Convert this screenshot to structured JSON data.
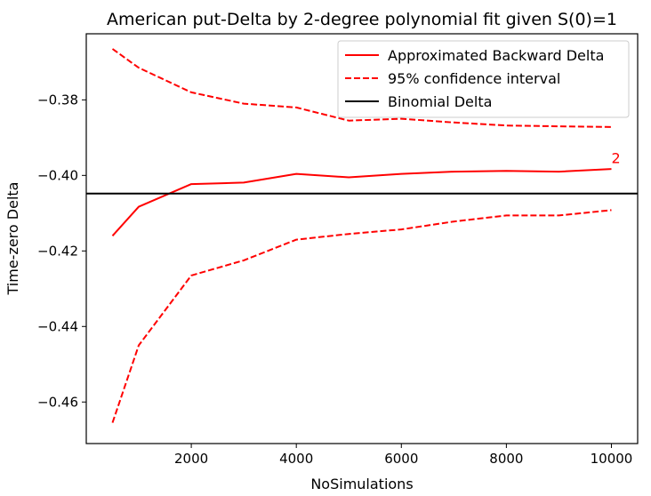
{
  "chart_data": {
    "type": "line",
    "title": "American put-Delta by 2-degree polynomial fit given S(0)=1",
    "xlabel": "NoSimulations",
    "ylabel": "Time-zero Delta",
    "xlim": [
      0,
      10500
    ],
    "ylim": [
      -0.471,
      -0.3625
    ],
    "xticks": [
      2000,
      4000,
      6000,
      8000,
      10000
    ],
    "xtick_labels": [
      "2000",
      "4000",
      "6000",
      "8000",
      "10000"
    ],
    "yticks": [
      -0.46,
      -0.44,
      -0.42,
      -0.4,
      -0.38
    ],
    "ytick_labels": [
      "−0.46",
      "−0.44",
      "−0.42",
      "−0.40",
      "−0.38"
    ],
    "grid": false,
    "legend_position": "top-right",
    "x": [
      500,
      1000,
      2000,
      3000,
      4000,
      5000,
      6000,
      7000,
      8000,
      9000,
      10000
    ],
    "series": [
      {
        "name": "Approximated Backward Delta",
        "color": "#ff0000",
        "style": "solid",
        "values": [
          -0.416,
          -0.4083,
          -0.4023,
          -0.4019,
          -0.3996,
          -0.4005,
          -0.3996,
          -0.399,
          -0.3988,
          -0.399,
          -0.3983
        ]
      },
      {
        "name": "95% confidence interval",
        "color": "#ff0000",
        "style": "dashed",
        "values": [
          -0.3665,
          -0.3715,
          -0.378,
          -0.381,
          -0.382,
          -0.3855,
          -0.385,
          -0.386,
          -0.3868,
          -0.387,
          -0.3872
        ]
      },
      {
        "name": "",
        "color": "#ff0000",
        "style": "dashed",
        "values": [
          -0.4655,
          -0.445,
          -0.4265,
          -0.4225,
          -0.417,
          -0.4155,
          -0.4143,
          -0.4122,
          -0.4106,
          -0.4106,
          -0.4092
        ]
      },
      {
        "name": "Binomial Delta",
        "color": "#000000",
        "style": "hline",
        "value": -0.4048
      }
    ],
    "annotations": [
      {
        "text": "2",
        "x": 10000,
        "y": -0.3968,
        "color": "#ff0000"
      }
    ]
  }
}
